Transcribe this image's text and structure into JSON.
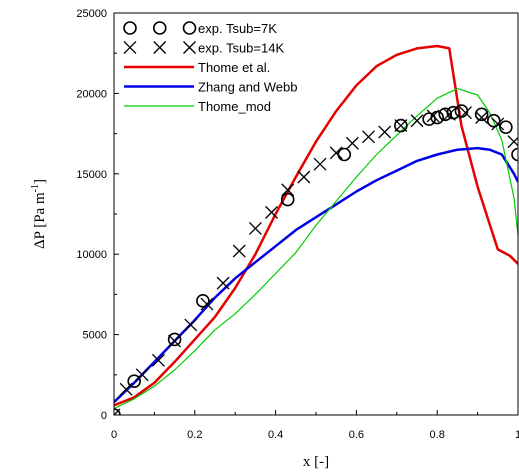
{
  "chart_data": {
    "type": "line",
    "title": "",
    "xlabel": "x [-]",
    "ylabel": "ΔP [Pa m",
    "ylabel_sup": "-1",
    "ylabel_close": "]",
    "xlim": [
      0,
      1
    ],
    "ylim": [
      0,
      25000
    ],
    "xticks": [
      0,
      0.2,
      0.4,
      0.6,
      0.8,
      1
    ],
    "xtick_labels": [
      "0",
      "0.2",
      "0.4",
      "0.6",
      "0.8",
      "1"
    ],
    "yticks": [
      0,
      5000,
      10000,
      15000,
      20000,
      25000
    ],
    "ytick_labels": [
      "0",
      "5000",
      "10000",
      "15000",
      "20000",
      "25000"
    ],
    "grid": false,
    "legend_position": "top-left",
    "series": [
      {
        "name": "exp. Tsub=7K",
        "kind": "scatter",
        "marker": "circle",
        "color": "#000000",
        "x": [
          0,
          0.05,
          0.15,
          0.22,
          0.43,
          0.57,
          0.71,
          0.78,
          0.8,
          0.82,
          0.84,
          0.86,
          0.91,
          0.94,
          0.97,
          1.0
        ],
        "y": [
          0,
          2100,
          4700,
          7100,
          13400,
          16200,
          18000,
          18400,
          18500,
          18700,
          18800,
          18900,
          18700,
          18300,
          17900,
          16200
        ]
      },
      {
        "name": "exp. Tsub=14K",
        "kind": "scatter",
        "marker": "x",
        "color": "#000000",
        "x": [
          0,
          0.03,
          0.07,
          0.11,
          0.15,
          0.19,
          0.23,
          0.27,
          0.31,
          0.35,
          0.39,
          0.43,
          0.47,
          0.51,
          0.55,
          0.59,
          0.63,
          0.67,
          0.71,
          0.75,
          0.79,
          0.83,
          0.87,
          0.91,
          0.95,
          0.99
        ],
        "y": [
          0,
          1600,
          2500,
          3400,
          4600,
          5600,
          6900,
          8200,
          10200,
          11600,
          12600,
          14000,
          14800,
          15600,
          16300,
          16900,
          17300,
          17600,
          18000,
          18300,
          18600,
          18700,
          18800,
          18500,
          18100,
          17000
        ]
      },
      {
        "name": "Thome et al.",
        "kind": "line",
        "color": "#e60000",
        "stroke_width": 2.5,
        "x": [
          0,
          0.05,
          0.1,
          0.15,
          0.2,
          0.25,
          0.3,
          0.35,
          0.4,
          0.45,
          0.5,
          0.55,
          0.6,
          0.65,
          0.7,
          0.75,
          0.8,
          0.83,
          0.86,
          0.9,
          0.95,
          0.98,
          1.0
        ],
        "y": [
          600,
          1100,
          2000,
          3300,
          4700,
          6100,
          7900,
          10000,
          12500,
          14800,
          17000,
          18900,
          20500,
          21700,
          22400,
          22800,
          22950,
          22800,
          18000,
          14200,
          10300,
          9900,
          9400
        ]
      },
      {
        "name": "Zhang and Webb",
        "kind": "line",
        "color": "#0000e6",
        "stroke_width": 2.5,
        "x": [
          0,
          0.05,
          0.1,
          0.15,
          0.2,
          0.25,
          0.3,
          0.35,
          0.4,
          0.45,
          0.5,
          0.55,
          0.6,
          0.65,
          0.7,
          0.75,
          0.8,
          0.85,
          0.9,
          0.93,
          0.96,
          0.99,
          1.0
        ],
        "y": [
          800,
          2000,
          3300,
          4600,
          5900,
          7300,
          8500,
          9500,
          10500,
          11500,
          12300,
          13100,
          13900,
          14600,
          15200,
          15800,
          16200,
          16500,
          16600,
          16500,
          16200,
          15000,
          14500
        ]
      },
      {
        "name": "Thome_mod",
        "kind": "line",
        "color": "#00cc00",
        "stroke_width": 1.2,
        "x": [
          0,
          0.05,
          0.1,
          0.15,
          0.2,
          0.25,
          0.3,
          0.35,
          0.4,
          0.45,
          0.5,
          0.55,
          0.6,
          0.65,
          0.7,
          0.75,
          0.8,
          0.85,
          0.9,
          0.93,
          0.96,
          0.99,
          1.0
        ],
        "y": [
          400,
          1000,
          1800,
          2800,
          4000,
          5300,
          6300,
          7500,
          8800,
          10100,
          11800,
          13300,
          14800,
          16200,
          17400,
          18600,
          19700,
          20300,
          19900,
          18800,
          17100,
          13500,
          11200
        ]
      }
    ]
  }
}
